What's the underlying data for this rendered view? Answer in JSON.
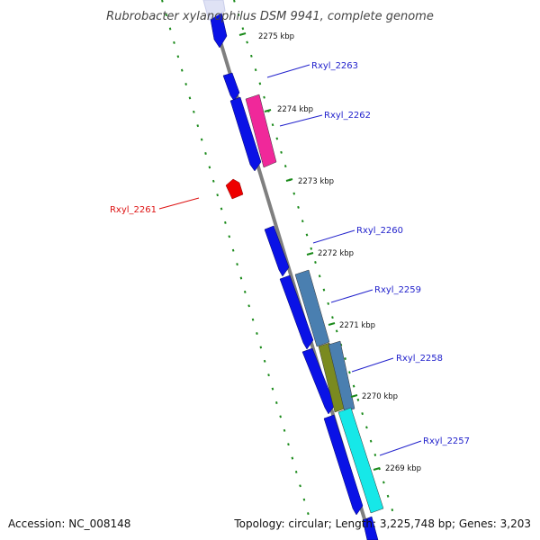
{
  "title": "Rubrobacter xylanophilus DSM 9941, complete genome",
  "footer": {
    "accession": "Accession: NC_008148",
    "summary": "Topology: circular; Length: 3,225,748 bp; Genes: 3,203"
  },
  "colors": {
    "backbone": "#7f7f7f",
    "ruler": "#1a8a1a",
    "forward_label": "#2222cc",
    "reverse_label": "#dd1111"
  },
  "ticks": [
    {
      "label": "2275 kbp"
    },
    {
      "label": "2274 kbp"
    },
    {
      "label": "2273 kbp"
    },
    {
      "label": "2272 kbp"
    },
    {
      "label": "2271 kbp"
    },
    {
      "label": "2270 kbp"
    },
    {
      "label": "2269 kbp"
    }
  ],
  "genes": [
    {
      "label": "Rxyl_2263",
      "color": "#2222cc"
    },
    {
      "label": "Rxyl_2262",
      "color": "#2222cc"
    },
    {
      "label": "Rxyl_2261",
      "color": "#dd1111"
    },
    {
      "label": "Rxyl_2260",
      "color": "#2222cc"
    },
    {
      "label": "Rxyl_2259",
      "color": "#2222cc"
    },
    {
      "label": "Rxyl_2258",
      "color": "#2222cc"
    },
    {
      "label": "Rxyl_2257",
      "color": "#2222cc"
    }
  ],
  "features": {
    "cds_color": "#0a12e6",
    "rna_color": "#ee0000",
    "cog_colors": [
      "#f0289a",
      "#4a7fb0",
      "#7a8a20",
      "#16e8e8"
    ]
  }
}
